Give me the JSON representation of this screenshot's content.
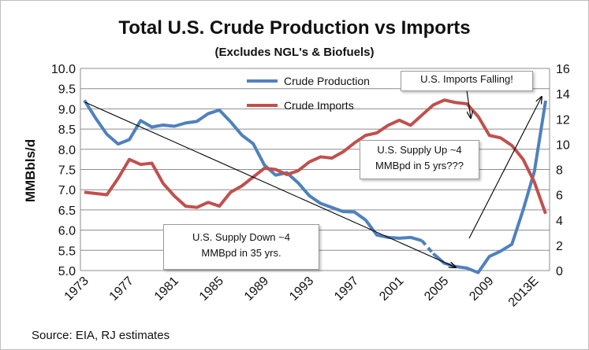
{
  "chart_data": {
    "type": "line",
    "title": "Total U.S. Crude Production  vs Imports",
    "subtitle": "(Excludes NGL's & Biofuels)",
    "ylabel": "MMBbls/d",
    "ylim": [
      5.0,
      10.0
    ],
    "y2lim": [
      0,
      16
    ],
    "y_ticks": [
      "5.0",
      "5.5",
      "6.0",
      "6.5",
      "7.0",
      "7.5",
      "8.0",
      "8.5",
      "9.0",
      "9.5",
      "10.0"
    ],
    "y2_ticks": [
      "0",
      "2",
      "4",
      "6",
      "8",
      "10",
      "12",
      "14",
      "16"
    ],
    "x_tick_labels": [
      "1973",
      "1977",
      "1981",
      "1985",
      "1989",
      "1993",
      "1997",
      "2001",
      "2005",
      "2009",
      "2013E"
    ],
    "x": [
      1973,
      1974,
      1975,
      1976,
      1977,
      1978,
      1979,
      1980,
      1981,
      1982,
      1983,
      1984,
      1985,
      1986,
      1987,
      1988,
      1989,
      1990,
      1991,
      1992,
      1993,
      1994,
      1995,
      1996,
      1997,
      1998,
      1999,
      2000,
      2001,
      2002,
      2003,
      2004,
      2005,
      2006,
      2007,
      2008,
      2009,
      2010,
      2011,
      2012,
      2013,
      2014
    ],
    "series": [
      {
        "name": "Crude Production",
        "axis": "left",
        "color": "#4f81bd",
        "dashed_range": [
          2003,
          2004
        ],
        "values": [
          9.21,
          8.77,
          8.37,
          8.13,
          8.24,
          8.71,
          8.55,
          8.6,
          8.57,
          8.65,
          8.69,
          8.88,
          8.97,
          8.68,
          8.35,
          8.14,
          7.61,
          7.36,
          7.42,
          7.17,
          6.85,
          6.66,
          6.56,
          6.46,
          6.45,
          6.25,
          5.88,
          5.82,
          5.8,
          5.82,
          5.74,
          5.42,
          5.18,
          5.1,
          5.06,
          4.95,
          5.35,
          5.48,
          5.65,
          6.5,
          7.45,
          9.2
        ]
      },
      {
        "name": "Crude Imports",
        "axis": "right",
        "color": "#c0504d",
        "values": [
          6.2,
          6.1,
          6.0,
          7.3,
          8.8,
          8.4,
          8.5,
          6.9,
          5.9,
          5.1,
          5.0,
          5.4,
          5.1,
          6.2,
          6.7,
          7.4,
          8.1,
          8.0,
          7.6,
          7.9,
          8.6,
          9.0,
          8.9,
          9.4,
          10.1,
          10.7,
          10.9,
          11.5,
          11.9,
          11.5,
          12.3,
          13.1,
          13.5,
          13.3,
          13.2,
          12.2,
          10.7,
          10.5,
          9.9,
          8.8,
          7.0,
          4.5
        ]
      }
    ],
    "annotations": [
      {
        "id": "imports-falling",
        "text": "U.S. Imports Falling!"
      },
      {
        "id": "supply-up",
        "line1": "U.S. Supply Up ~4",
        "line2": "MMBpd in 5 yrs???"
      },
      {
        "id": "supply-down",
        "line1": "U.S. Supply Down ~4",
        "line2": "MMBpd in 35 yrs."
      }
    ]
  },
  "source": "Source: EIA, RJ estimates",
  "colors": {
    "production": "#4f81bd",
    "imports": "#c0504d",
    "grid": "#8c8c8c",
    "arrow": "#000000"
  }
}
